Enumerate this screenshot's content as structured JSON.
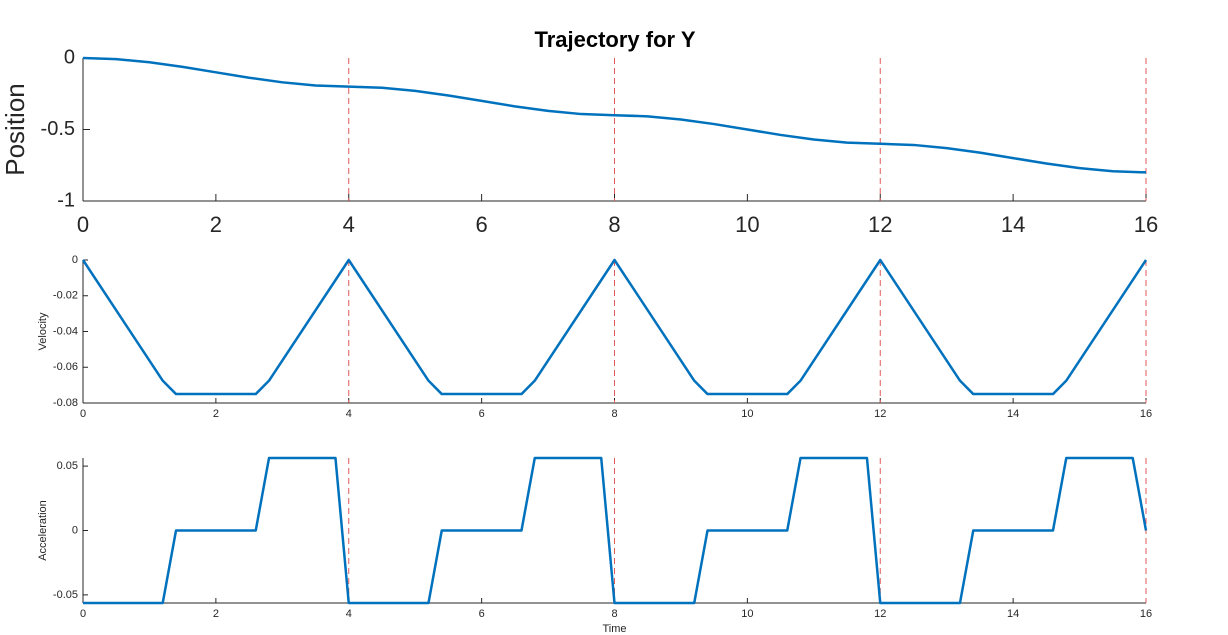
{
  "chart_data": {
    "title": "Trajectory for Y",
    "series_color": "#0072BD",
    "marker_line_color": "#e05a5a",
    "marker_lines_x": [
      4,
      8,
      12,
      16
    ],
    "subplots": [
      {
        "type": "line",
        "ylabel": "Position",
        "xlabel": "",
        "xlim": [
          0,
          16
        ],
        "ylim": [
          -1,
          0
        ],
        "xticks": [
          0,
          2,
          4,
          6,
          8,
          10,
          12,
          14,
          16
        ],
        "yticks": [
          -1,
          -0.5,
          0
        ],
        "ytick_labels": [
          "-1",
          "-0.5",
          "0"
        ],
        "series": [
          {
            "x": [
              0,
              0.5,
              1,
              1.5,
              2,
              2.5,
              3,
              3.5,
              4,
              4.5,
              5,
              5.5,
              6,
              6.5,
              7,
              7.5,
              8,
              8.5,
              9,
              9.5,
              10,
              10.5,
              11,
              11.5,
              12,
              12.5,
              13,
              13.5,
              14,
              14.5,
              15,
              15.5,
              16
            ],
            "y": [
              0,
              -0.008,
              -0.03,
              -0.062,
              -0.1,
              -0.138,
              -0.17,
              -0.192,
              -0.2,
              -0.208,
              -0.23,
              -0.262,
              -0.3,
              -0.338,
              -0.37,
              -0.392,
              -0.4,
              -0.408,
              -0.43,
              -0.462,
              -0.5,
              -0.538,
              -0.57,
              -0.592,
              -0.6,
              -0.608,
              -0.63,
              -0.662,
              -0.7,
              -0.738,
              -0.77,
              -0.792,
              -0.8
            ]
          }
        ]
      },
      {
        "type": "line",
        "ylabel": "Velocity",
        "xlabel": "",
        "xlim": [
          0,
          16
        ],
        "ylim": [
          -0.08,
          0
        ],
        "xticks": [
          0,
          2,
          4,
          6,
          8,
          10,
          12,
          14,
          16
        ],
        "yticks": [
          -0.08,
          -0.06,
          -0.04,
          -0.02,
          0
        ],
        "ytick_labels": [
          "-0.08",
          "-0.06",
          "-0.04",
          "-0.02",
          "0"
        ],
        "series": [
          {
            "x": [
              0,
              1.2,
              1.4,
              2.6,
              2.8,
              4,
              5.2,
              5.4,
              6.6,
              6.8,
              8,
              9.2,
              9.4,
              10.6,
              10.8,
              12,
              13.2,
              13.4,
              14.6,
              14.8,
              16
            ],
            "y": [
              0,
              -0.0675,
              -0.075,
              -0.075,
              -0.0675,
              0,
              -0.0675,
              -0.075,
              -0.075,
              -0.0675,
              0,
              -0.0675,
              -0.075,
              -0.075,
              -0.0675,
              0,
              -0.0675,
              -0.075,
              -0.075,
              -0.0675,
              0
            ]
          }
        ]
      },
      {
        "type": "line",
        "ylabel": "Acceleration",
        "xlabel": "Time",
        "xlim": [
          0,
          16
        ],
        "ylim": [
          -0.0563,
          0.0563
        ],
        "xticks": [
          0,
          2,
          4,
          6,
          8,
          10,
          12,
          14,
          16
        ],
        "yticks": [
          -0.05,
          0,
          0.05
        ],
        "ytick_labels": [
          "-0.05",
          "0",
          "0.05"
        ],
        "series": [
          {
            "x": [
              0,
              1.2,
              1.4,
              2.6,
              2.8,
              3.8,
              4,
              5.2,
              5.4,
              6.6,
              6.8,
              7.8,
              8,
              9.2,
              9.4,
              10.6,
              10.8,
              11.8,
              12,
              13.2,
              13.4,
              14.6,
              14.8,
              15.8,
              16
            ],
            "y": [
              -0.0563,
              -0.0563,
              0,
              0,
              0.0563,
              0.0563,
              -0.0563,
              -0.0563,
              0,
              0,
              0.0563,
              0.0563,
              -0.0563,
              -0.0563,
              0,
              0,
              0.0563,
              0.0563,
              -0.0563,
              -0.0563,
              0,
              0,
              0.0563,
              0.0563,
              0
            ]
          }
        ]
      }
    ]
  }
}
